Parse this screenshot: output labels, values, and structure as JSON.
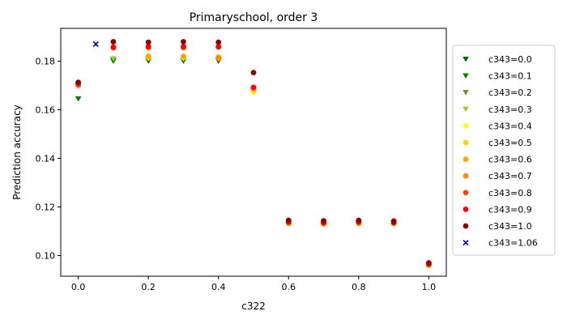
{
  "chart_data": {
    "type": "scatter",
    "title": "Primaryschool, order 3",
    "xlabel": "c322",
    "ylabel": "Prediction accuracy",
    "xlim": [
      -0.05,
      1.05
    ],
    "ylim": [
      0.0915,
      0.1935
    ],
    "xticks": [
      0.0,
      0.2,
      0.4,
      0.6,
      0.8,
      1.0
    ],
    "xtick_labels": [
      "0.0",
      "0.2",
      "0.4",
      "0.6",
      "0.8",
      "1.0"
    ],
    "yticks": [
      0.1,
      0.12,
      0.14,
      0.16,
      0.18
    ],
    "ytick_labels": [
      "0.10",
      "0.12",
      "0.14",
      "0.16",
      "0.18"
    ],
    "grid": false,
    "legend_position": "outside-right",
    "series": [
      {
        "name": "c343=0.0",
        "color": "#006400",
        "marker": "triangle-down",
        "x": [
          0.0,
          0.1,
          0.2,
          0.3,
          0.4,
          0.5,
          0.6,
          0.7,
          0.8,
          0.9,
          1.0
        ],
        "y": [
          0.1645,
          0.18,
          0.18,
          0.18,
          0.18,
          0.168,
          0.1135,
          0.113,
          0.1135,
          0.1135,
          0.0962
        ]
      },
      {
        "name": "c343=0.1",
        "color": "#008000",
        "marker": "triangle-down",
        "x": [
          0.0,
          0.1,
          0.2,
          0.3,
          0.4,
          0.5,
          0.6,
          0.7,
          0.8,
          0.9,
          1.0
        ],
        "y": [
          0.1645,
          0.1805,
          0.1805,
          0.1805,
          0.1805,
          0.168,
          0.1135,
          0.113,
          0.1135,
          0.1135,
          0.0962
        ]
      },
      {
        "name": "c343=0.2",
        "color": "#6B8E23",
        "marker": "triangle-down",
        "x": [
          0.1,
          0.2,
          0.3,
          0.4,
          0.5,
          0.6,
          0.7,
          0.8,
          0.9,
          1.0
        ],
        "y": [
          0.1808,
          0.1808,
          0.1808,
          0.1808,
          0.168,
          0.1135,
          0.113,
          0.1135,
          0.1135,
          0.0962
        ]
      },
      {
        "name": "c343=0.3",
        "color": "#9ACD32",
        "marker": "triangle-down",
        "x": [
          0.1,
          0.2,
          0.3,
          0.4,
          0.5,
          0.6,
          0.7,
          0.8,
          0.9,
          1.0
        ],
        "y": [
          0.181,
          0.181,
          0.181,
          0.181,
          0.168,
          0.1135,
          0.113,
          0.1135,
          0.1135,
          0.0962
        ]
      },
      {
        "name": "c343=0.4",
        "color": "#FFFF00",
        "marker": "circle",
        "x": [
          0.0,
          0.2,
          0.3,
          0.4,
          0.5,
          0.6,
          0.7,
          0.8,
          0.9,
          1.0
        ],
        "y": [
          0.17,
          0.1815,
          0.1815,
          0.1815,
          0.1672,
          0.1132,
          0.113,
          0.1132,
          0.1132,
          0.096
        ]
      },
      {
        "name": "c343=0.5",
        "color": "#FFD700",
        "marker": "circle",
        "x": [
          0.0,
          0.2,
          0.3,
          0.4,
          0.5,
          0.6,
          0.7,
          0.8,
          0.9,
          1.0
        ],
        "y": [
          0.17,
          0.1818,
          0.1818,
          0.1818,
          0.168,
          0.1132,
          0.113,
          0.1132,
          0.1132,
          0.096
        ]
      },
      {
        "name": "c343=0.6",
        "color": "#FFA500",
        "marker": "circle",
        "x": [
          0.0,
          0.2,
          0.3,
          0.4,
          0.5,
          0.6,
          0.7,
          0.8,
          0.9,
          1.0
        ],
        "y": [
          0.17,
          0.182,
          0.182,
          0.1815,
          0.1685,
          0.1132,
          0.113,
          0.1132,
          0.1132,
          0.096
        ]
      },
      {
        "name": "c343=0.7",
        "color": "#FF8C00",
        "marker": "circle",
        "x": [
          0.0,
          0.2,
          0.3,
          0.4,
          0.5,
          0.6,
          0.7,
          0.8,
          0.9,
          1.0
        ],
        "y": [
          0.17,
          0.1855,
          0.1855,
          0.1812,
          0.169,
          0.1135,
          0.1132,
          0.1135,
          0.1135,
          0.0962
        ]
      },
      {
        "name": "c343=0.8",
        "color": "#FF4500",
        "marker": "circle",
        "x": [
          0.0,
          0.1,
          0.2,
          0.3,
          0.4,
          0.5,
          0.6,
          0.7,
          0.8,
          0.9,
          1.0
        ],
        "y": [
          0.1705,
          0.1855,
          0.1858,
          0.1858,
          0.1858,
          0.1692,
          0.1137,
          0.1135,
          0.1137,
          0.1135,
          0.0965
        ]
      },
      {
        "name": "c343=0.9",
        "color": "#FF0000",
        "marker": "circle",
        "x": [
          0.0,
          0.1,
          0.2,
          0.3,
          0.4,
          0.5,
          0.6,
          0.7,
          0.8,
          0.9,
          1.0
        ],
        "y": [
          0.1708,
          0.1858,
          0.186,
          0.186,
          0.186,
          0.1692,
          0.1138,
          0.1135,
          0.1138,
          0.1135,
          0.0965
        ]
      },
      {
        "name": "c343=1.0",
        "color": "#8B0000",
        "marker": "circle",
        "x": [
          0.0,
          0.1,
          0.2,
          0.3,
          0.4,
          0.5,
          0.6,
          0.7,
          0.8,
          0.9,
          1.0
        ],
        "y": [
          0.1713,
          0.188,
          0.1878,
          0.188,
          0.1878,
          0.1753,
          0.1145,
          0.1143,
          0.1145,
          0.1142,
          0.097
        ]
      },
      {
        "name": "c343=1.06",
        "color": "#0000CD",
        "marker": "x",
        "x": [
          0.05
        ],
        "y": [
          0.187
        ]
      }
    ]
  }
}
